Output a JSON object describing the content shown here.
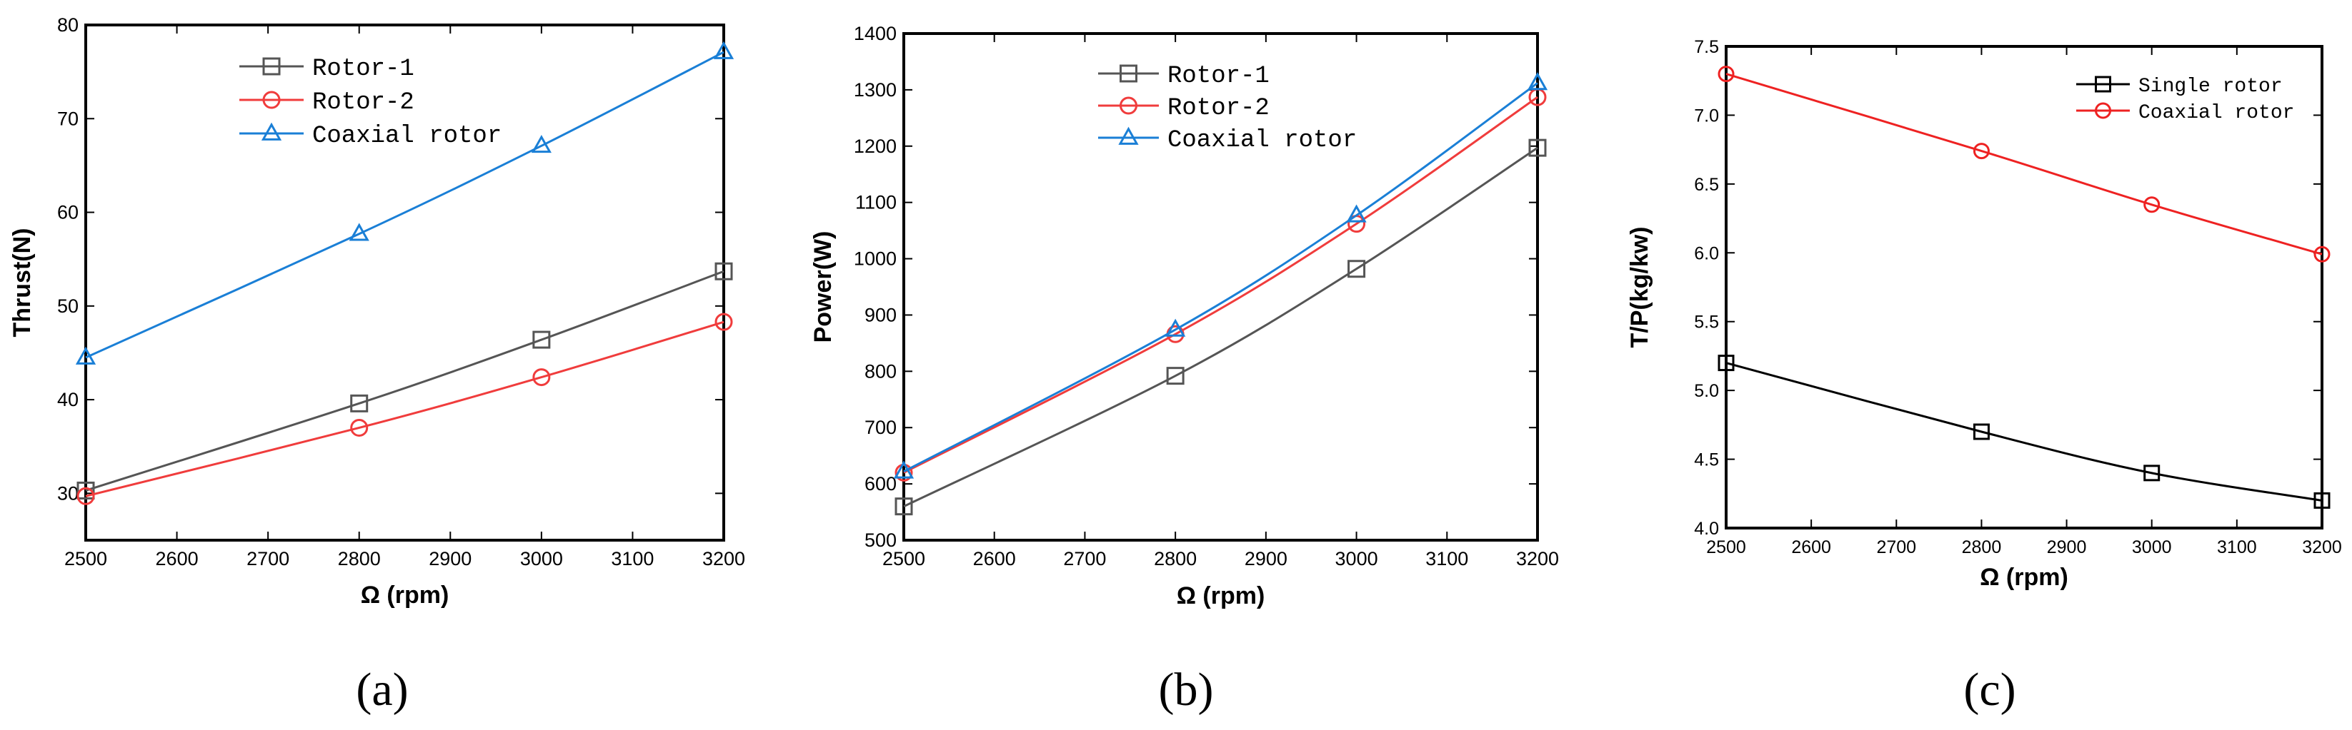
{
  "chart_data": [
    {
      "id": "a",
      "type": "line",
      "caption": "(a)",
      "xlabel": "Ω (rpm)",
      "ylabel": "Thrust(N)",
      "xlim": [
        2500,
        3200
      ],
      "ylim": [
        25,
        80
      ],
      "xticks": [
        2500,
        2600,
        2700,
        2800,
        2900,
        3000,
        3100,
        3200
      ],
      "yticks": [
        30,
        40,
        50,
        60,
        70,
        80
      ],
      "x": [
        2500,
        2800,
        3000,
        3200
      ],
      "series": [
        {
          "name": "Rotor-1",
          "color": "#555555",
          "marker": "square",
          "values": [
            30.3,
            39.6,
            46.4,
            53.7
          ]
        },
        {
          "name": "Rotor-2",
          "color": "#f03c3c",
          "marker": "circle",
          "values": [
            29.7,
            37.0,
            42.4,
            48.3
          ]
        },
        {
          "name": "Coaxial rotor",
          "color": "#1a7fd6",
          "marker": "triangle",
          "values": [
            44.5,
            57.7,
            67.1,
            77.1
          ]
        }
      ],
      "legend_position": "top-center"
    },
    {
      "id": "b",
      "type": "line",
      "caption": "(b)",
      "xlabel": "Ω (rpm)",
      "ylabel": "Power(W)",
      "xlim": [
        2500,
        3200
      ],
      "ylim": [
        500,
        1400
      ],
      "xticks": [
        2500,
        2600,
        2700,
        2800,
        2900,
        3000,
        3100,
        3200
      ],
      "yticks": [
        500,
        600,
        700,
        800,
        900,
        1000,
        1100,
        1200,
        1300,
        1400
      ],
      "x": [
        2500,
        2800,
        3000,
        3200
      ],
      "series": [
        {
          "name": "Rotor-1",
          "color": "#555555",
          "marker": "square",
          "values": [
            560,
            792,
            982,
            1197
          ]
        },
        {
          "name": "Rotor-2",
          "color": "#f03c3c",
          "marker": "circle",
          "values": [
            620,
            866,
            1062,
            1287
          ]
        },
        {
          "name": "Coaxial rotor",
          "color": "#1a7fd6",
          "marker": "triangle",
          "values": [
            622,
            874,
            1077,
            1312
          ]
        }
      ],
      "legend_position": "top-center"
    },
    {
      "id": "c",
      "type": "line",
      "caption": "(c)",
      "xlabel": "Ω (rpm)",
      "ylabel": "T/P(kg/kw)",
      "xlim": [
        2500,
        3200
      ],
      "ylim": [
        4.0,
        7.5
      ],
      "xticks": [
        2500,
        2600,
        2700,
        2800,
        2900,
        3000,
        3100,
        3200
      ],
      "yticks": [
        "4.0",
        "4.5",
        "5.0",
        "5.5",
        "6.0",
        "6.5",
        "7.0",
        "7.5"
      ],
      "x": [
        2500,
        2800,
        3000,
        3200
      ],
      "series": [
        {
          "name": "Single rotor",
          "color": "#000000",
          "marker": "square",
          "values": [
            5.2,
            4.7,
            4.4,
            4.2
          ]
        },
        {
          "name": "Coaxial rotor",
          "color": "#ee2222",
          "marker": "circle",
          "values": [
            7.3,
            6.74,
            6.35,
            5.99
          ]
        }
      ],
      "legend_position": "top-right"
    }
  ]
}
